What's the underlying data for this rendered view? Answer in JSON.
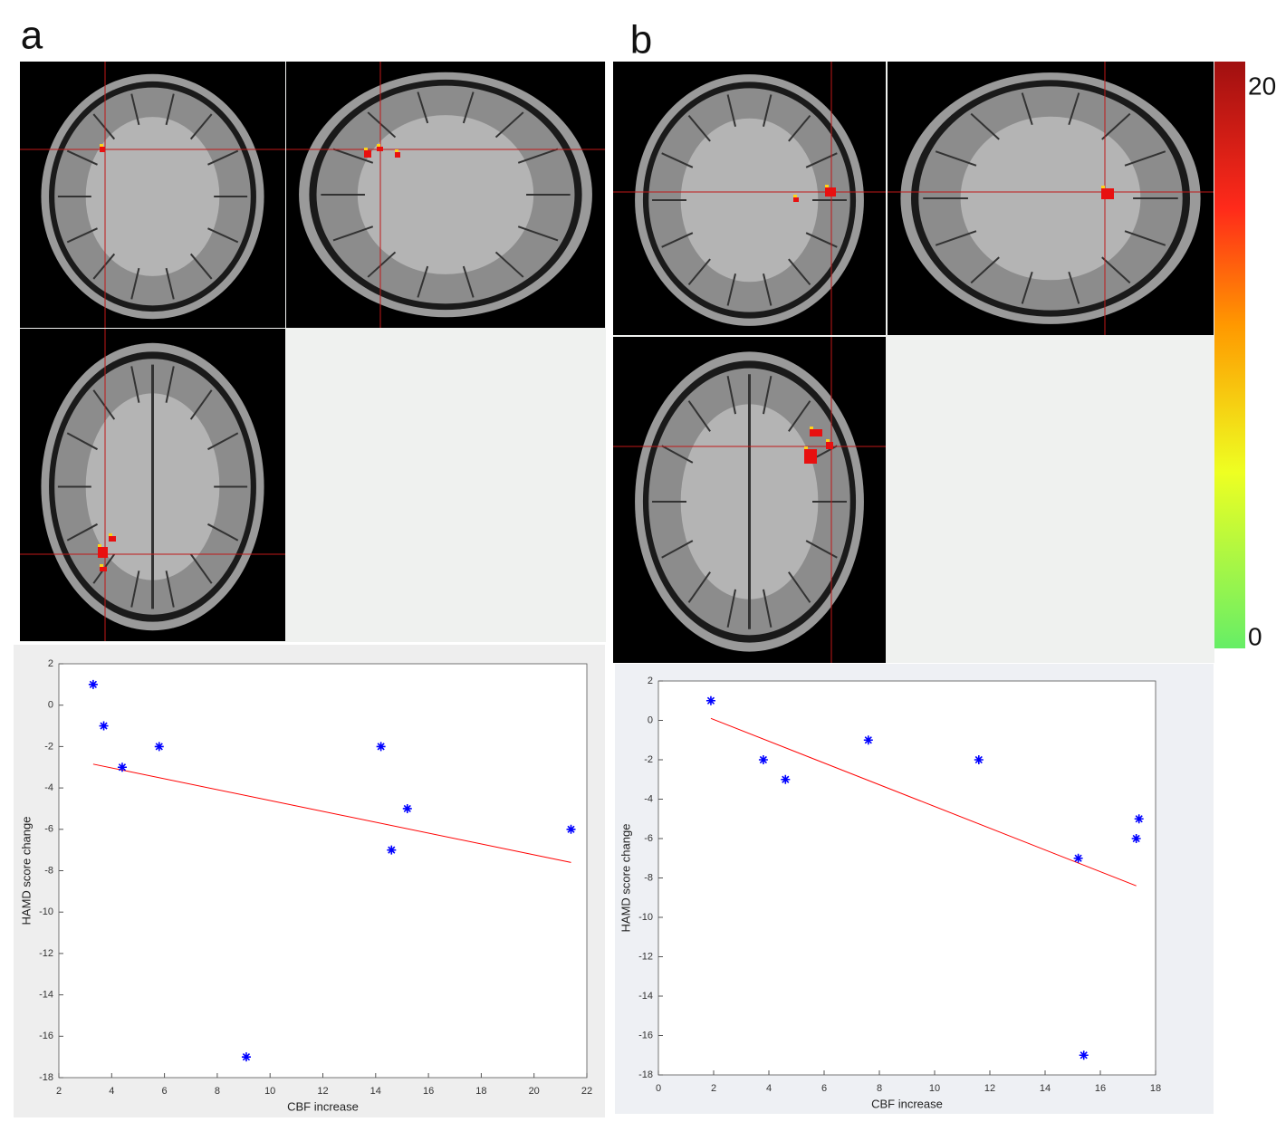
{
  "chart_data": [
    {
      "type": "scatter",
      "label": "a",
      "x_label": "CBF increase",
      "y_label": "HAMD score change",
      "series": [
        {
          "color": "#0000ff",
          "x": [
            3.3,
            3.7,
            4.4,
            5.8,
            9.1,
            14.2,
            14.6,
            15.2,
            21.4
          ],
          "values": [
            1,
            -1,
            -3,
            -2,
            -17,
            -2,
            -7,
            -5,
            -6
          ]
        }
      ],
      "fit": {
        "color": "#ff0000",
        "x": [
          3.3,
          21.4
        ],
        "values": [
          -2.85,
          -7.6
        ]
      },
      "xlim": [
        2,
        22
      ],
      "xticks": [
        2,
        4,
        6,
        8,
        10,
        12,
        14,
        16,
        18,
        20,
        22
      ],
      "ylim": [
        -18,
        2
      ],
      "yticks": [
        -18,
        -16,
        -14,
        -12,
        -10,
        -8,
        -6,
        -4,
        -2,
        0,
        2
      ]
    },
    {
      "type": "scatter",
      "label": "b",
      "x_label": "CBF increase",
      "y_label": "HAMD score change",
      "series": [
        {
          "color": "#0000ff",
          "x": [
            1.9,
            3.8,
            4.6,
            7.6,
            11.6,
            15.2,
            15.4,
            17.3,
            17.4
          ],
          "values": [
            1,
            -2,
            -3,
            -1,
            -2,
            -7,
            -17,
            -6,
            -5
          ]
        }
      ],
      "fit": {
        "color": "#ff0000",
        "x": [
          1.9,
          17.3
        ],
        "values": [
          0.1,
          -8.4
        ]
      },
      "xlim": [
        0,
        18
      ],
      "xticks": [
        0,
        2,
        4,
        6,
        8,
        10,
        12,
        14,
        16,
        18
      ],
      "ylim": [
        -18,
        2
      ],
      "yticks": [
        -18,
        -16,
        -14,
        -12,
        -10,
        -8,
        -6,
        -4,
        -2,
        0,
        2
      ]
    }
  ],
  "colorbar": {
    "range": [
      0,
      20
    ],
    "ticks": [
      0,
      20
    ]
  }
}
